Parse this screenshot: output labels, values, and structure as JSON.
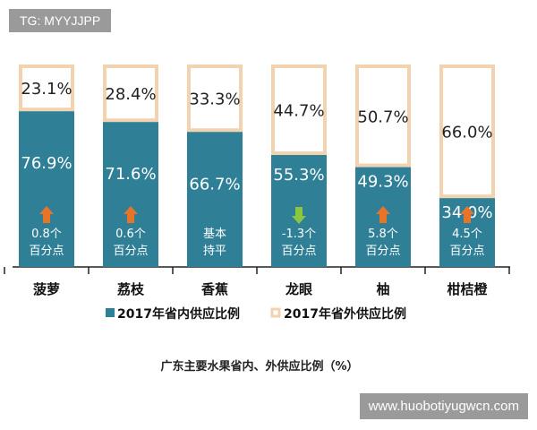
{
  "watermarks": {
    "top_left": "TG: MYYJJPP",
    "bottom_right": "www.huobotiyugwcn.com"
  },
  "chart_data": {
    "type": "bar",
    "stacked": true,
    "title": "广东主要水果省内、外供应比例（%）",
    "categories": [
      "菠萝",
      "荔枝",
      "香蕉",
      "龙眼",
      "柚",
      "柑桔橙"
    ],
    "series": [
      {
        "name": "2017年省内供应比例",
        "values": [
          76.9,
          71.6,
          66.7,
          55.3,
          49.3,
          34.0
        ],
        "color": "#2f7f96"
      },
      {
        "name": "2017年省外供应比例",
        "values": [
          23.1,
          28.4,
          33.3,
          44.7,
          50.7,
          66.0
        ],
        "color": "#f3d2b0"
      }
    ],
    "annotations": [
      {
        "text": [
          "0.8个",
          "百分点"
        ],
        "arrow": "up"
      },
      {
        "text": [
          "0.6个",
          "百分点"
        ],
        "arrow": "up"
      },
      {
        "text": [
          "基本",
          "持平"
        ],
        "arrow": "none"
      },
      {
        "text": [
          "-1.3个",
          "百分点"
        ],
        "arrow": "down"
      },
      {
        "text": [
          "5.8个",
          "百分点"
        ],
        "arrow": "up"
      },
      {
        "text": [
          "4.5个",
          "百分点"
        ],
        "arrow": "up"
      }
    ],
    "arrow_colors": {
      "up": "#e8742a",
      "down": "#8cc63f"
    },
    "ylim": [
      0,
      100
    ],
    "legend": "bottom"
  }
}
